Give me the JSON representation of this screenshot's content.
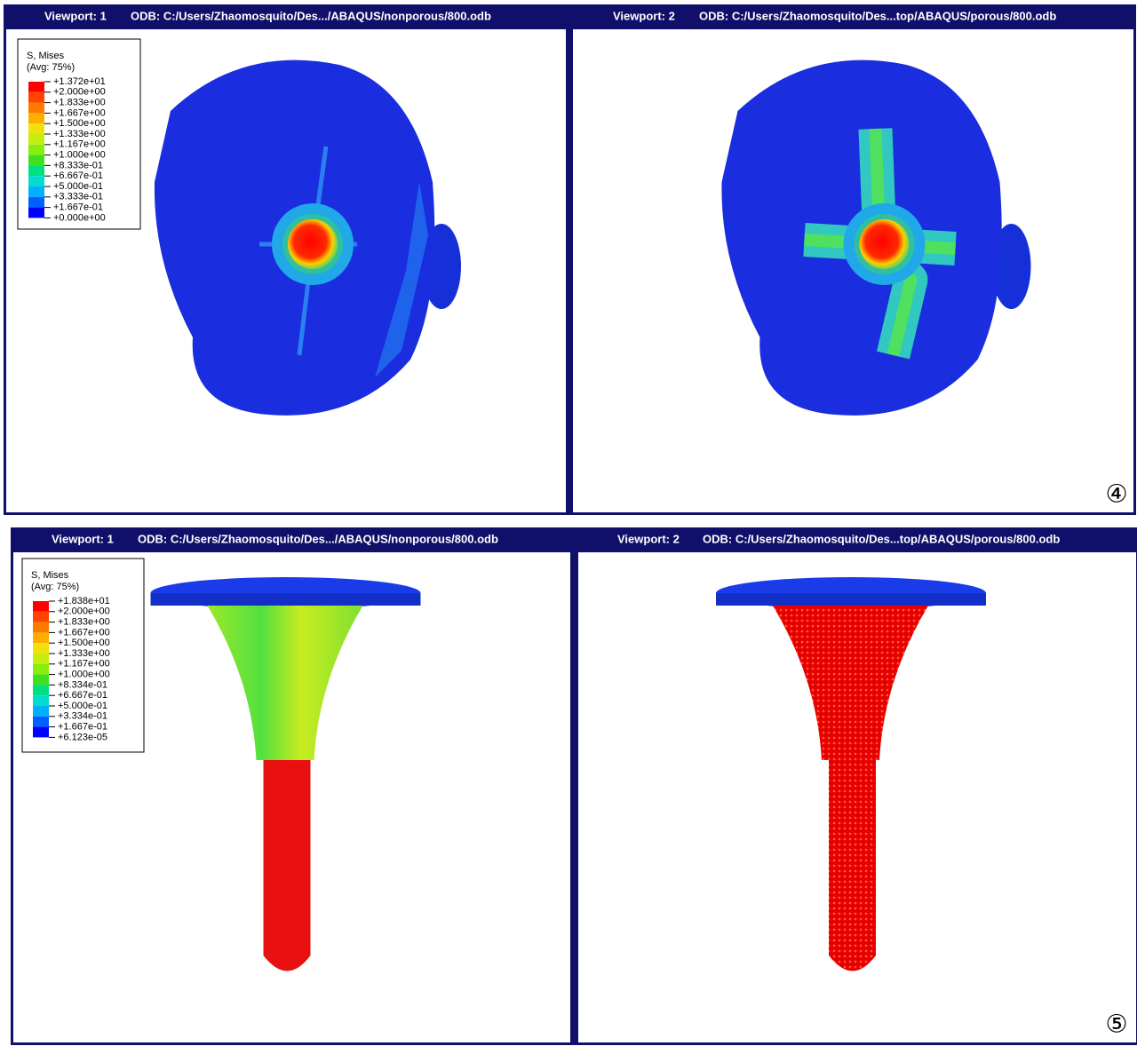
{
  "panels": [
    {
      "label": "④",
      "viewports": [
        {
          "title": "Viewport: 1",
          "odb": "ODB: C:/Users/Zhaomosquito/Des.../ABAQUS/nonporous/800.odb",
          "legend": {
            "title": "S, Mises",
            "subtitle": "(Avg: 75%)",
            "entries": [
              "+1.372e+01",
              "+2.000e+00",
              "+1.833e+00",
              "+1.667e+00",
              "+1.500e+00",
              "+1.333e+00",
              "+1.167e+00",
              "+1.000e+00",
              "+8.333e-01",
              "+6.667e-01",
              "+5.000e-01",
              "+3.333e-01",
              "+1.667e-01",
              "+0.000e+00"
            ]
          }
        },
        {
          "title": "Viewport: 2",
          "odb": "ODB: C:/Users/Zhaomosquito/Des...top/ABAQUS/porous/800.odb"
        }
      ]
    },
    {
      "label": "⑤",
      "viewports": [
        {
          "title": "Viewport: 1",
          "odb": "ODB: C:/Users/Zhaomosquito/Des.../ABAQUS/nonporous/800.odb",
          "legend": {
            "title": "S, Mises",
            "subtitle": "(Avg: 75%)",
            "entries": [
              "+1.838e+01",
              "+2.000e+00",
              "+1.833e+00",
              "+1.667e+00",
              "+1.500e+00",
              "+1.333e+00",
              "+1.167e+00",
              "+1.000e+00",
              "+8.334e-01",
              "+6.667e-01",
              "+5.000e-01",
              "+3.334e-01",
              "+1.667e-01",
              "+6.123e-05"
            ]
          }
        },
        {
          "title": "Viewport: 2",
          "odb": "ODB: C:/Users/Zhaomosquito/Des...top/ABAQUS/porous/800.odb"
        }
      ]
    }
  ]
}
